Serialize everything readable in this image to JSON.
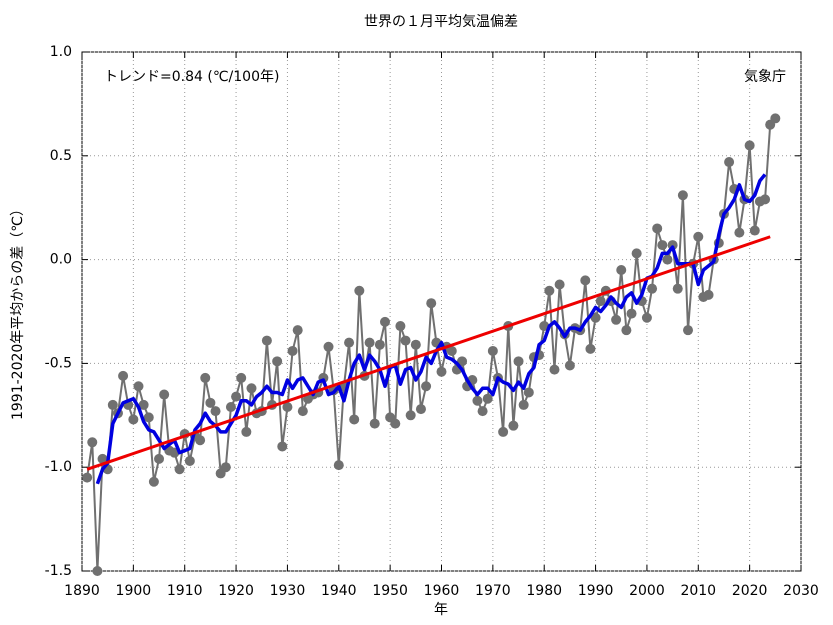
{
  "chart_data": {
    "type": "line",
    "title": "世界の１月平均気温偏差",
    "annotation": "トレンド=0.84 (℃/100年)",
    "source": "気象庁",
    "xlabel": "年",
    "ylabel": "1991-2020年平均からの差（℃）",
    "x": [
      1891,
      1892,
      1893,
      1894,
      1895,
      1896,
      1897,
      1898,
      1899,
      1900,
      1901,
      1902,
      1903,
      1904,
      1905,
      1906,
      1907,
      1908,
      1909,
      1910,
      1911,
      1912,
      1913,
      1914,
      1915,
      1916,
      1917,
      1918,
      1919,
      1920,
      1921,
      1922,
      1923,
      1924,
      1925,
      1926,
      1927,
      1928,
      1929,
      1930,
      1931,
      1932,
      1933,
      1934,
      1935,
      1936,
      1937,
      1938,
      1939,
      1940,
      1941,
      1942,
      1943,
      1944,
      1945,
      1946,
      1947,
      1948,
      1949,
      1950,
      1951,
      1952,
      1953,
      1954,
      1955,
      1956,
      1957,
      1958,
      1959,
      1960,
      1961,
      1962,
      1963,
      1964,
      1965,
      1966,
      1967,
      1968,
      1969,
      1970,
      1971,
      1972,
      1973,
      1974,
      1975,
      1976,
      1977,
      1978,
      1979,
      1980,
      1981,
      1982,
      1983,
      1984,
      1985,
      1986,
      1987,
      1988,
      1989,
      1990,
      1991,
      1992,
      1993,
      1994,
      1995,
      1996,
      1997,
      1998,
      1999,
      2000,
      2001,
      2002,
      2003,
      2004,
      2005,
      2006,
      2007,
      2008,
      2009,
      2010,
      2011,
      2012,
      2013,
      2014,
      2015,
      2016,
      2017,
      2018,
      2019,
      2020,
      2021,
      2022,
      2023,
      2024,
      2025
    ],
    "series": [
      {
        "color": "#707070",
        "markers": true,
        "values": [
          -1.05,
          -0.88,
          -1.5,
          -0.96,
          -1.01,
          -0.7,
          -0.74,
          -0.56,
          -0.7,
          -0.77,
          -0.61,
          -0.7,
          -0.76,
          -1.07,
          -0.96,
          -0.65,
          -0.92,
          -0.93,
          -1.01,
          -0.84,
          -0.97,
          -0.85,
          -0.87,
          -0.57,
          -0.69,
          -0.73,
          -1.03,
          -1.0,
          -0.71,
          -0.66,
          -0.57,
          -0.83,
          -0.62,
          -0.74,
          -0.73,
          -0.39,
          -0.7,
          -0.49,
          -0.9,
          -0.71,
          -0.44,
          -0.34,
          -0.73,
          -0.67,
          -0.65,
          -0.64,
          -0.57,
          -0.42,
          -0.63,
          -0.99,
          -0.61,
          -0.4,
          -0.77,
          -0.15,
          -0.56,
          -0.4,
          -0.79,
          -0.41,
          -0.3,
          -0.76,
          -0.79,
          -0.32,
          -0.39,
          -0.75,
          -0.41,
          -0.72,
          -0.61,
          -0.21,
          -0.4,
          -0.54,
          -0.42,
          -0.44,
          -0.53,
          -0.49,
          -0.61,
          -0.58,
          -0.68,
          -0.73,
          -0.67,
          -0.44,
          -0.57,
          -0.83,
          -0.32,
          -0.8,
          -0.49,
          -0.7,
          -0.64,
          -0.47,
          -0.46,
          -0.32,
          -0.15,
          -0.53,
          -0.12,
          -0.36,
          -0.51,
          -0.33,
          -0.34,
          -0.1,
          -0.43,
          -0.28,
          -0.2,
          -0.15,
          -0.2,
          -0.29,
          -0.05,
          -0.34,
          -0.26,
          0.03,
          -0.2,
          -0.28,
          -0.14,
          0.15,
          0.07,
          0.0,
          0.07,
          -0.14,
          0.31,
          -0.34,
          -0.02,
          0.11,
          -0.18,
          -0.17,
          0.0,
          0.08,
          0.22,
          0.47,
          0.34,
          0.13,
          0.29,
          0.55,
          0.14,
          0.28,
          0.29,
          0.65,
          0.68
        ]
      },
      {
        "color": "#0000e0",
        "markers": false,
        "values": [
          null,
          null,
          -1.08,
          -1.01,
          -0.98,
          -0.79,
          -0.74,
          -0.69,
          -0.68,
          -0.67,
          -0.71,
          -0.78,
          -0.82,
          -0.83,
          -0.87,
          -0.91,
          -0.89,
          -0.87,
          -0.93,
          -0.92,
          -0.91,
          -0.82,
          -0.79,
          -0.74,
          -0.78,
          -0.8,
          -0.83,
          -0.83,
          -0.79,
          -0.75,
          -0.68,
          -0.68,
          -0.7,
          -0.66,
          -0.64,
          -0.61,
          -0.64,
          -0.64,
          -0.65,
          -0.58,
          -0.62,
          -0.58,
          -0.57,
          -0.61,
          -0.65,
          -0.59,
          -0.58,
          -0.65,
          -0.64,
          -0.61,
          -0.68,
          -0.58,
          -0.5,
          -0.46,
          -0.53,
          -0.46,
          -0.49,
          -0.53,
          -0.61,
          -0.52,
          -0.51,
          -0.6,
          -0.53,
          -0.52,
          -0.58,
          -0.54,
          -0.47,
          -0.5,
          -0.44,
          -0.4,
          -0.47,
          -0.48,
          -0.5,
          -0.53,
          -0.58,
          -0.62,
          -0.65,
          -0.62,
          -0.62,
          -0.65,
          -0.57,
          -0.59,
          -0.6,
          -0.63,
          -0.59,
          -0.62,
          -0.55,
          -0.52,
          -0.41,
          -0.39,
          -0.32,
          -0.3,
          -0.33,
          -0.37,
          -0.33,
          -0.33,
          -0.34,
          -0.3,
          -0.27,
          -0.23,
          -0.25,
          -0.22,
          -0.18,
          -0.21,
          -0.23,
          -0.18,
          -0.16,
          -0.21,
          -0.17,
          -0.09,
          -0.08,
          -0.04,
          0.03,
          0.03,
          0.06,
          -0.02,
          -0.02,
          -0.02,
          -0.02,
          -0.12,
          -0.05,
          -0.03,
          -0.01,
          0.12,
          0.22,
          0.25,
          0.29,
          0.36,
          0.29,
          0.28,
          0.31,
          0.38,
          0.41,
          null,
          null
        ]
      }
    ],
    "trend": {
      "color": "#ee0000",
      "x": [
        1891,
        2024
      ],
      "values": [
        -1.01,
        0.11
      ]
    },
    "xlim": [
      1890,
      2030
    ],
    "xticks": [
      1890,
      1900,
      1910,
      1920,
      1930,
      1940,
      1950,
      1960,
      1970,
      1980,
      1990,
      2000,
      2010,
      2020,
      2030
    ],
    "ylim": [
      -1.5,
      1.0
    ],
    "yticks": [
      -1.5,
      {
        "value": -1,
        "label": "-1.0"
      },
      -0.5,
      {
        "value": 0,
        "label": "0.0"
      },
      0.5,
      {
        "value": 1,
        "label": "1.0"
      }
    ],
    "grid": true
  }
}
